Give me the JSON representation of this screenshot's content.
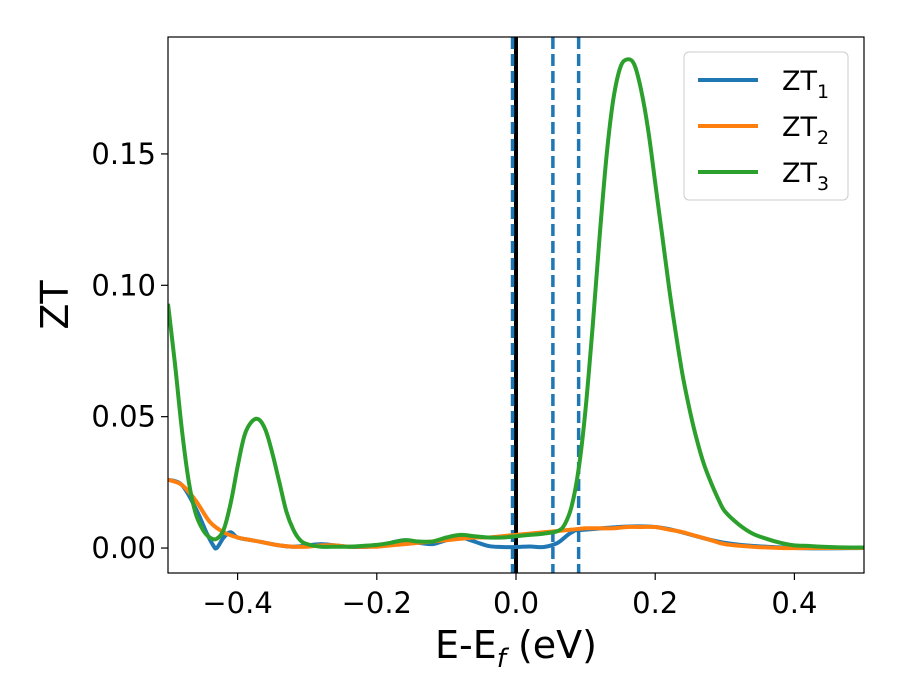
{
  "chart_data": {
    "type": "line",
    "xlabel": {
      "base": "E-E",
      "sub": "f",
      "suffix": " (eV)"
    },
    "ylabel": "ZT",
    "xlim": [
      -0.5,
      0.5
    ],
    "ylim": [
      -0.0095,
      0.1945
    ],
    "x_ticks": [
      -0.4,
      -0.2,
      0.0,
      0.2,
      0.4
    ],
    "x_tick_labels": [
      "−0.4",
      "−0.2",
      "0.0",
      "0.2",
      "0.4"
    ],
    "y_ticks": [
      0.0,
      0.05,
      0.1,
      0.15
    ],
    "y_tick_labels": [
      "0.00",
      "0.05",
      "0.10",
      "0.15"
    ],
    "grid": false,
    "legend_position": "top-right",
    "vlines": [
      {
        "x": 0.0,
        "style": "solid",
        "color": "#000000"
      },
      {
        "x": -0.005,
        "style": "dashed",
        "color": "#1f77b4"
      },
      {
        "x": 0.053,
        "style": "dashed",
        "color": "#1f77b4"
      },
      {
        "x": 0.09,
        "style": "dashed",
        "color": "#1f77b4"
      }
    ],
    "series": [
      {
        "name": "ZT",
        "name_sub": "1",
        "color": "#1f77b4",
        "x": [
          -0.5,
          -0.48,
          -0.46,
          -0.445,
          -0.435,
          -0.43,
          -0.42,
          -0.41,
          -0.4,
          -0.38,
          -0.36,
          -0.34,
          -0.32,
          -0.3,
          -0.28,
          -0.26,
          -0.24,
          -0.22,
          -0.2,
          -0.18,
          -0.16,
          -0.14,
          -0.12,
          -0.1,
          -0.08,
          -0.06,
          -0.04,
          -0.02,
          0.0,
          0.02,
          0.04,
          0.06,
          0.08,
          0.1,
          0.2,
          0.3,
          0.4,
          0.5
        ],
        "y": [
          0.026,
          0.024,
          0.015,
          0.006,
          0.001,
          0.0,
          0.004,
          0.006,
          0.004,
          0.003,
          0.002,
          0.001,
          0.0005,
          0.001,
          0.0015,
          0.001,
          0.0005,
          0.0004,
          0.0008,
          0.002,
          0.003,
          0.002,
          0.0015,
          0.003,
          0.004,
          0.0025,
          0.0008,
          0.0004,
          0.0004,
          0.0006,
          0.0004,
          0.002,
          0.006,
          0.007,
          0.008,
          0.002,
          0.0,
          0.0
        ]
      },
      {
        "name": "ZT",
        "name_sub": "2",
        "color": "#ff7f0e",
        "x": [
          -0.5,
          -0.48,
          -0.46,
          -0.44,
          -0.42,
          -0.4,
          -0.38,
          -0.36,
          -0.34,
          -0.32,
          -0.3,
          -0.28,
          -0.26,
          -0.24,
          -0.22,
          -0.2,
          -0.18,
          -0.16,
          -0.14,
          -0.12,
          -0.1,
          -0.08,
          -0.06,
          -0.04,
          -0.02,
          0.0,
          0.02,
          0.04,
          0.06,
          0.08,
          0.1,
          0.12,
          0.14,
          0.16,
          0.18,
          0.2,
          0.22,
          0.24,
          0.26,
          0.28,
          0.3,
          0.34,
          0.38,
          0.42,
          0.46,
          0.5
        ],
        "y": [
          0.026,
          0.024,
          0.018,
          0.01,
          0.006,
          0.004,
          0.003,
          0.002,
          0.001,
          0.0005,
          0.0005,
          0.001,
          0.001,
          0.0005,
          0.0005,
          0.0005,
          0.001,
          0.0015,
          0.002,
          0.0025,
          0.003,
          0.0035,
          0.004,
          0.004,
          0.0045,
          0.005,
          0.0055,
          0.006,
          0.0065,
          0.007,
          0.0075,
          0.0075,
          0.0075,
          0.008,
          0.008,
          0.008,
          0.007,
          0.006,
          0.0045,
          0.003,
          0.0015,
          0.0005,
          0.0,
          0.0,
          0.0,
          0.0
        ]
      },
      {
        "name": "ZT",
        "name_sub": "3",
        "color": "#2ca02c",
        "x": [
          -0.5,
          -0.49,
          -0.48,
          -0.47,
          -0.46,
          -0.45,
          -0.44,
          -0.43,
          -0.42,
          -0.41,
          -0.4,
          -0.39,
          -0.38,
          -0.37,
          -0.36,
          -0.35,
          -0.34,
          -0.33,
          -0.32,
          -0.31,
          -0.3,
          -0.28,
          -0.26,
          -0.24,
          -0.22,
          -0.2,
          -0.18,
          -0.16,
          -0.14,
          -0.12,
          -0.1,
          -0.08,
          -0.06,
          -0.04,
          -0.02,
          0.0,
          0.02,
          0.04,
          0.06,
          0.07,
          0.08,
          0.09,
          0.1,
          0.11,
          0.12,
          0.13,
          0.14,
          0.15,
          0.16,
          0.17,
          0.18,
          0.19,
          0.2,
          0.21,
          0.22,
          0.23,
          0.24,
          0.25,
          0.26,
          0.27,
          0.28,
          0.29,
          0.3,
          0.32,
          0.34,
          0.36,
          0.38,
          0.4,
          0.42,
          0.44,
          0.46,
          0.48,
          0.5
        ],
        "y": [
          0.093,
          0.07,
          0.045,
          0.025,
          0.013,
          0.007,
          0.004,
          0.0035,
          0.007,
          0.017,
          0.031,
          0.043,
          0.048,
          0.049,
          0.045,
          0.036,
          0.025,
          0.014,
          0.007,
          0.003,
          0.0015,
          0.0005,
          0.0005,
          0.0005,
          0.0008,
          0.0012,
          0.002,
          0.003,
          0.0025,
          0.0025,
          0.004,
          0.005,
          0.0045,
          0.004,
          0.004,
          0.0045,
          0.005,
          0.0055,
          0.0065,
          0.009,
          0.016,
          0.03,
          0.053,
          0.084,
          0.118,
          0.149,
          0.171,
          0.183,
          0.186,
          0.184,
          0.174,
          0.159,
          0.139,
          0.119,
          0.099,
          0.081,
          0.065,
          0.052,
          0.041,
          0.032,
          0.025,
          0.019,
          0.014,
          0.009,
          0.0055,
          0.0035,
          0.002,
          0.001,
          0.0008,
          0.0005,
          0.0003,
          0.0002,
          0.0002
        ]
      }
    ]
  }
}
